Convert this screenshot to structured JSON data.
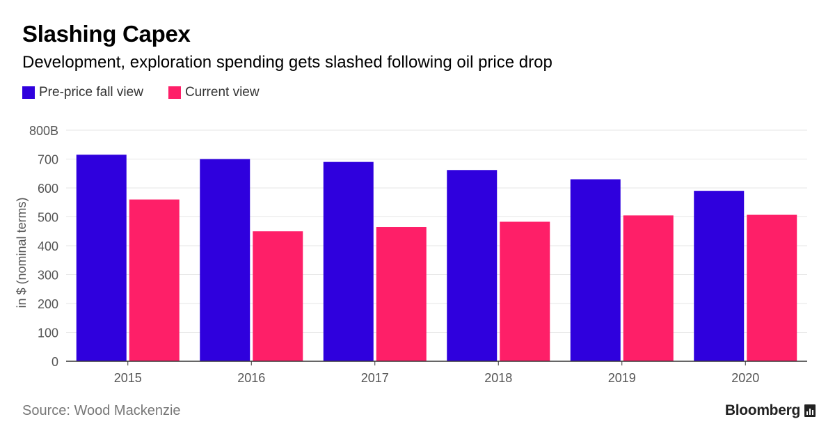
{
  "header": {
    "title": "Slashing Capex",
    "subtitle": "Development, exploration spending gets slashed following oil price drop"
  },
  "footer": {
    "source": "Source: Wood Mackenzie",
    "brand": "Bloomberg"
  },
  "colors": {
    "series1": "#2f00dd",
    "series2": "#fe1f68",
    "grid": "#e6e6e6",
    "axis": "#333333",
    "tick_text": "#555555"
  },
  "chart_data": {
    "type": "bar",
    "title": "Slashing Capex",
    "categories": [
      "2015",
      "2016",
      "2017",
      "2018",
      "2019",
      "2020"
    ],
    "series": [
      {
        "name": "Pre-price fall view",
        "values": [
          715,
          700,
          690,
          662,
          630,
          590
        ]
      },
      {
        "name": "Current view",
        "values": [
          560,
          450,
          465,
          483,
          505,
          507
        ]
      }
    ],
    "ylabel": "in $ (nominal terms)",
    "xlabel": "",
    "ylim": [
      0,
      800
    ],
    "yticks": [
      0,
      100,
      200,
      300,
      400,
      500,
      600,
      700,
      800
    ],
    "ytick_labels": [
      "0",
      "100",
      "200",
      "300",
      "400",
      "500",
      "600",
      "700",
      "800B"
    ],
    "grid": true,
    "legend": "top-left"
  }
}
